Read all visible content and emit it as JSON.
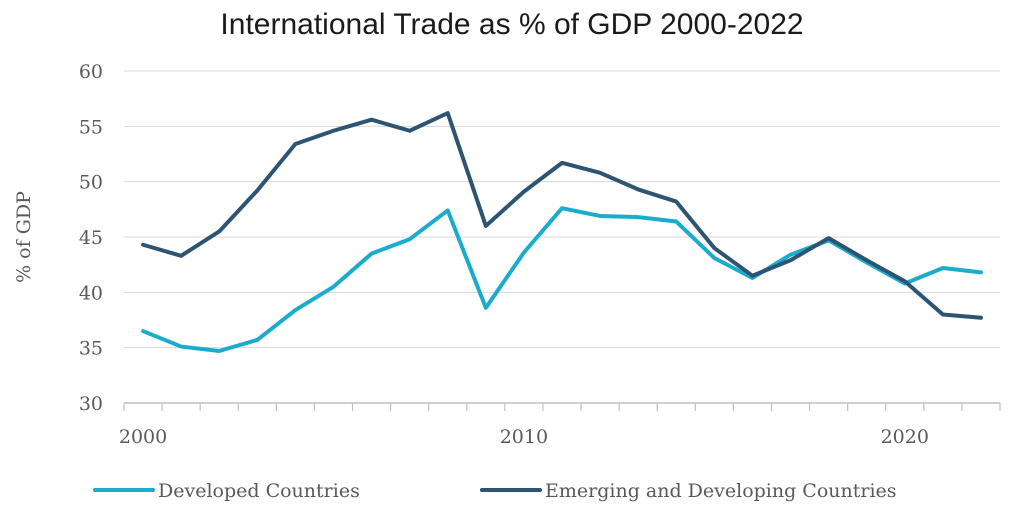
{
  "chart_data": {
    "type": "line",
    "title": "International Trade as % of GDP 2000-2022",
    "xlabel": "",
    "ylabel": "% of GDP",
    "x": [
      2000,
      2001,
      2002,
      2003,
      2004,
      2005,
      2006,
      2007,
      2008,
      2009,
      2010,
      2011,
      2012,
      2013,
      2014,
      2015,
      2016,
      2017,
      2018,
      2019,
      2020,
      2021,
      2022
    ],
    "series": [
      {
        "name": "Developed Countries",
        "color": "#1aaccc",
        "values": [
          36.5,
          35.1,
          34.7,
          35.7,
          38.4,
          40.5,
          43.5,
          44.8,
          47.4,
          38.6,
          43.6,
          47.6,
          46.9,
          46.8,
          46.4,
          43.1,
          41.3,
          43.4,
          44.7,
          42.7,
          40.8,
          42.2,
          41.8
        ]
      },
      {
        "name": "Emerging and Developing Countries",
        "color": "#2d5472",
        "values": [
          44.3,
          43.3,
          45.5,
          49.2,
          53.4,
          54.6,
          55.6,
          54.6,
          56.2,
          46.0,
          49.1,
          51.7,
          50.8,
          49.3,
          48.2,
          44.0,
          41.5,
          42.9,
          44.9,
          42.9,
          41.0,
          38.0,
          37.7
        ]
      }
    ],
    "ylim": [
      30,
      60
    ],
    "yticks": [
      30,
      35,
      40,
      45,
      50,
      55,
      60
    ],
    "xlim": [
      1999.5,
      2022.5
    ],
    "xtick_labels": [
      2000,
      2010,
      2020
    ],
    "grid": true,
    "legend_position": "bottom",
    "colors": {
      "grid": "#d9d9d9",
      "axis": "#bfbfbf",
      "text": "#595959"
    }
  }
}
